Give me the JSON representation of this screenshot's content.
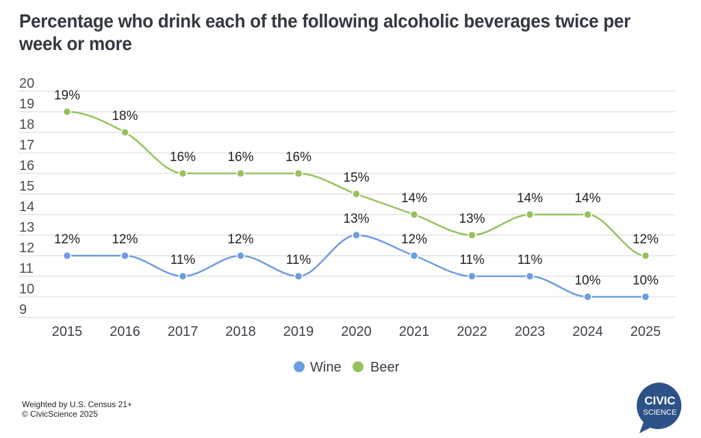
{
  "chart_data": {
    "type": "line",
    "title": "Percentage who drink each of the following alcoholic beverages twice per week or more",
    "xlabel": "",
    "ylabel": "",
    "x": [
      "2015",
      "2016",
      "2017",
      "2018",
      "2019",
      "2020",
      "2021",
      "2022",
      "2023",
      "2024",
      "2025"
    ],
    "ylim": [
      9,
      20
    ],
    "yticks": [
      20,
      19,
      18,
      17,
      16,
      15,
      14,
      13,
      12,
      11,
      10,
      9
    ],
    "grid": true,
    "legend_position": "bottom-center",
    "series": [
      {
        "name": "Wine",
        "color": "#6b9de2",
        "values": [
          12,
          12,
          11,
          12,
          11,
          13,
          12,
          11,
          11,
          10,
          10
        ],
        "labels": [
          "12%",
          "12%",
          "11%",
          "12%",
          "11%",
          "13%",
          "12%",
          "11%",
          "11%",
          "10%",
          "10%"
        ]
      },
      {
        "name": "Beer",
        "color": "#95c25d",
        "values": [
          19,
          18,
          16,
          16,
          16,
          15,
          14,
          13,
          14,
          14,
          12
        ],
        "labels": [
          "19%",
          "18%",
          "16%",
          "16%",
          "16%",
          "15%",
          "14%",
          "13%",
          "14%",
          "14%",
          "12%"
        ]
      }
    ]
  },
  "footer": {
    "line1": "Weighted by U.S. Census 21+",
    "line2": "© CivicScience 2025"
  },
  "logo": {
    "line1": "CIVIC",
    "line2": "SCIENCE",
    "color": "#2d5288"
  }
}
